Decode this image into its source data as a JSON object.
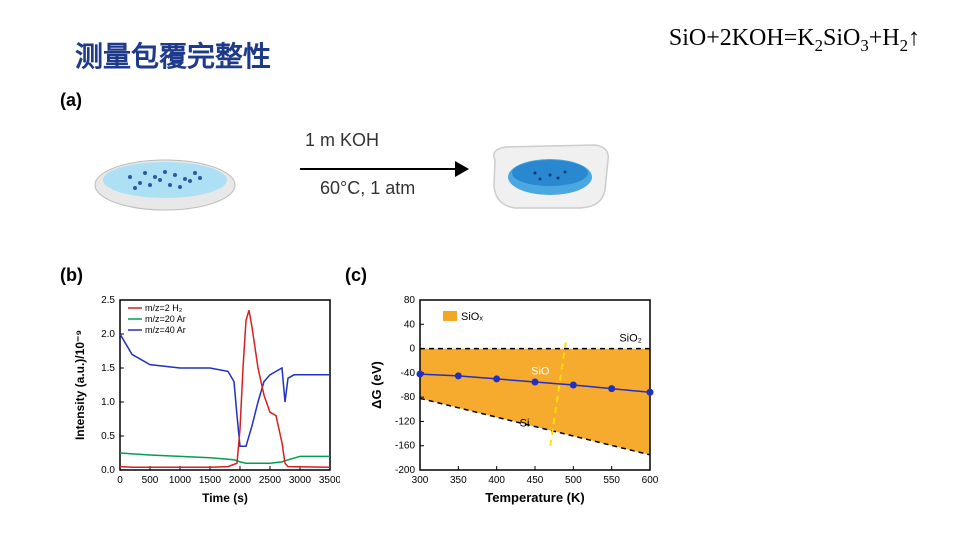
{
  "title": "测量包覆完整性",
  "equation": {
    "parts": [
      "SiO+2KOH=K",
      "2",
      "SiO",
      "3",
      "+H",
      "2",
      "↑"
    ]
  },
  "panel_labels": {
    "a": "(a)",
    "b": "(b)",
    "c": "(c)"
  },
  "panel_a": {
    "reagent": "1 m KOH",
    "condition": "60°C, 1 atm",
    "dish_blue": "#7ec8e8",
    "dish_gray": "#d8d8d8",
    "dot_color": "#2a5aa0"
  },
  "chart_b": {
    "type": "line",
    "xlabel": "Time (s)",
    "ylabel": "Intensity (a.u.)/10⁻⁹",
    "sup": "-9",
    "xlim": [
      0,
      3500
    ],
    "xtick_step": 500,
    "ylim": [
      0.0,
      2.5
    ],
    "ytick_step": 0.5,
    "plot_bg": "#ffffff",
    "axis_color": "#000000",
    "legend": [
      {
        "label": "m/z=2 H₂",
        "color": "#d62020"
      },
      {
        "label": "m/z=20 Ar",
        "color": "#00a050"
      },
      {
        "label": "m/z=40 Ar",
        "color": "#2030c0"
      }
    ],
    "series": {
      "red": {
        "color": "#d62020",
        "width": 1.5,
        "points": [
          [
            0,
            0.05
          ],
          [
            200,
            0.04
          ],
          [
            1500,
            0.04
          ],
          [
            1800,
            0.05
          ],
          [
            1950,
            0.1
          ],
          [
            2000,
            0.6
          ],
          [
            2050,
            1.5
          ],
          [
            2100,
            2.2
          ],
          [
            2150,
            2.35
          ],
          [
            2200,
            2.1
          ],
          [
            2300,
            1.5
          ],
          [
            2400,
            1.1
          ],
          [
            2500,
            0.85
          ],
          [
            2600,
            0.8
          ],
          [
            2700,
            0.4
          ],
          [
            2750,
            0.1
          ],
          [
            2800,
            0.05
          ],
          [
            3500,
            0.04
          ]
        ]
      },
      "green": {
        "color": "#00a050",
        "width": 1.5,
        "points": [
          [
            0,
            0.25
          ],
          [
            500,
            0.22
          ],
          [
            1000,
            0.2
          ],
          [
            1500,
            0.18
          ],
          [
            1900,
            0.15
          ],
          [
            2000,
            0.12
          ],
          [
            2100,
            0.1
          ],
          [
            2500,
            0.1
          ],
          [
            2700,
            0.12
          ],
          [
            2800,
            0.15
          ],
          [
            3000,
            0.2
          ],
          [
            3500,
            0.2
          ]
        ]
      },
      "blue": {
        "color": "#2030c0",
        "width": 1.5,
        "points": [
          [
            0,
            2.0
          ],
          [
            200,
            1.7
          ],
          [
            500,
            1.55
          ],
          [
            1000,
            1.5
          ],
          [
            1500,
            1.5
          ],
          [
            1800,
            1.45
          ],
          [
            1900,
            1.3
          ],
          [
            1950,
            0.8
          ],
          [
            2000,
            0.35
          ],
          [
            2100,
            0.35
          ],
          [
            2200,
            0.65
          ],
          [
            2300,
            1.0
          ],
          [
            2400,
            1.3
          ],
          [
            2500,
            1.4
          ],
          [
            2600,
            1.45
          ],
          [
            2700,
            1.5
          ],
          [
            2750,
            1.0
          ],
          [
            2800,
            1.35
          ],
          [
            2900,
            1.4
          ],
          [
            3500,
            1.4
          ]
        ]
      }
    }
  },
  "chart_c": {
    "type": "area",
    "xlabel": "Temperature (K)",
    "ylabel": "ΔG (eV)",
    "xlim": [
      300,
      600
    ],
    "xtick_step": 50,
    "ylim": [
      -200,
      80
    ],
    "ytick_step": 40,
    "plot_bg": "#ffffff",
    "region_color": "#f5a623",
    "region_label": "SiOₓ",
    "upper_line": {
      "label": "SiO₂",
      "points": [
        [
          300,
          0
        ],
        [
          600,
          0
        ]
      ],
      "dash": true
    },
    "mid_line": {
      "label": "SiO",
      "color": "#2030c0",
      "points": [
        [
          300,
          -42
        ],
        [
          350,
          -45
        ],
        [
          400,
          -50
        ],
        [
          450,
          -55
        ],
        [
          500,
          -60
        ],
        [
          550,
          -66
        ],
        [
          600,
          -72
        ]
      ]
    },
    "lower_line": {
      "label": "Si",
      "points": [
        [
          300,
          -82
        ],
        [
          600,
          -175
        ]
      ],
      "dash": true
    },
    "disproportionation_line": {
      "color": "#ffe000",
      "points": [
        [
          470,
          -160
        ],
        [
          490,
          10
        ]
      ],
      "dash": true
    }
  }
}
